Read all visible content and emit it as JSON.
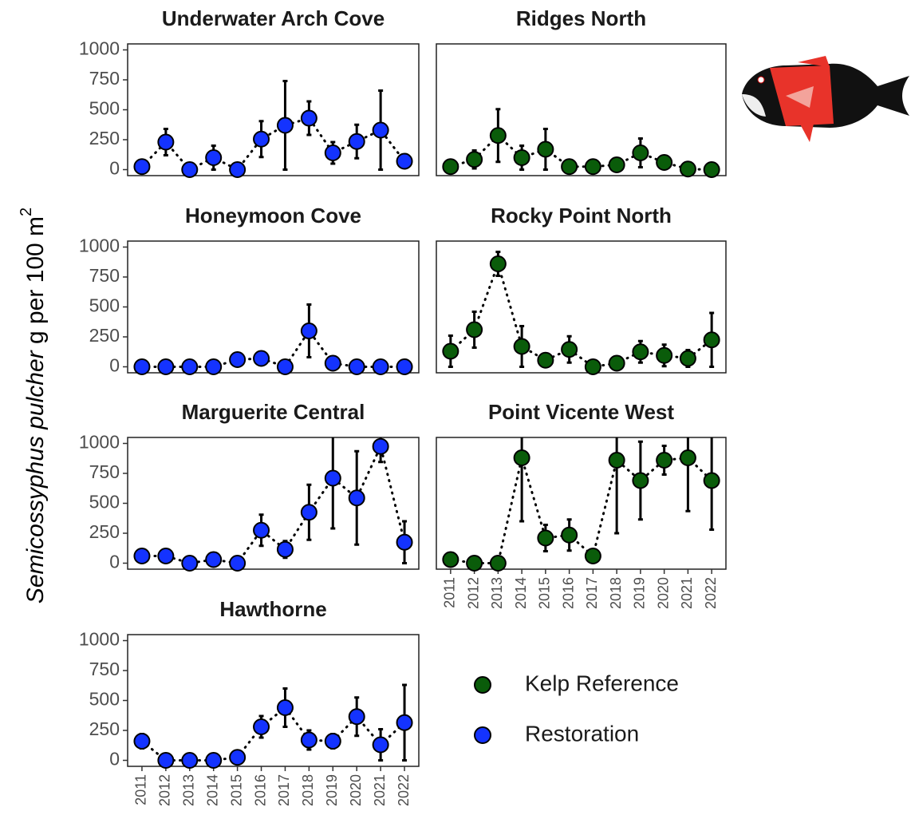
{
  "chart_data": [
    {
      "type": "scatter",
      "title": "Underwater Arch Cove",
      "x": [
        2011,
        2012,
        2013,
        2014,
        2015,
        2016,
        2017,
        2018,
        2019,
        2020,
        2021,
        2022
      ],
      "series": [
        {
          "name": "Restoration",
          "color": "#1433ff",
          "values": [
            25,
            230,
            0,
            100,
            0,
            255,
            370,
            430,
            140,
            235,
            330,
            70
          ],
          "errors": [
            0,
            110,
            0,
            100,
            0,
            150,
            370,
            140,
            90,
            140,
            330,
            0
          ]
        }
      ],
      "xlim": [
        2010.4,
        2022.6
      ],
      "ylim": [
        -50,
        1050
      ],
      "yticks": [
        0,
        250,
        500,
        750,
        1000
      ]
    },
    {
      "type": "scatter",
      "title": "Ridges North",
      "x": [
        2011,
        2012,
        2013,
        2014,
        2015,
        2016,
        2017,
        2018,
        2019,
        2020,
        2021,
        2022
      ],
      "series": [
        {
          "name": "Kelp Reference",
          "color": "#0a5c0a",
          "values": [
            25,
            85,
            285,
            100,
            170,
            25,
            25,
            40,
            140,
            60,
            5,
            0
          ],
          "errors": [
            0,
            75,
            220,
            100,
            170,
            0,
            0,
            0,
            120,
            0,
            0,
            0
          ]
        }
      ],
      "xlim": [
        2010.4,
        2022.6
      ],
      "ylim": [
        -50,
        1050
      ],
      "yticks": [
        0,
        250,
        500,
        750,
        1000
      ]
    },
    {
      "type": "scatter",
      "title": "Honeymoon Cove",
      "x": [
        2011,
        2012,
        2013,
        2014,
        2015,
        2016,
        2017,
        2018,
        2019,
        2020,
        2021,
        2022
      ],
      "series": [
        {
          "name": "Restoration",
          "color": "#1433ff",
          "values": [
            0,
            0,
            0,
            0,
            60,
            70,
            0,
            300,
            30,
            0,
            0,
            0
          ],
          "errors": [
            0,
            0,
            0,
            0,
            0,
            0,
            0,
            220,
            0,
            0,
            0,
            0
          ]
        }
      ],
      "xlim": [
        2010.4,
        2022.6
      ],
      "ylim": [
        -50,
        1050
      ],
      "yticks": [
        0,
        250,
        500,
        750,
        1000
      ]
    },
    {
      "type": "scatter",
      "title": "Rocky Point North",
      "x": [
        2011,
        2012,
        2013,
        2014,
        2015,
        2016,
        2017,
        2018,
        2019,
        2020,
        2021,
        2022
      ],
      "series": [
        {
          "name": "Kelp Reference",
          "color": "#0a5c0a",
          "values": [
            130,
            310,
            860,
            170,
            55,
            145,
            0,
            30,
            125,
            95,
            70,
            225
          ],
          "errors": [
            130,
            150,
            100,
            170,
            0,
            110,
            0,
            0,
            90,
            90,
            70,
            225
          ]
        }
      ],
      "xlim": [
        2010.4,
        2022.6
      ],
      "ylim": [
        -50,
        1050
      ],
      "yticks": [
        0,
        250,
        500,
        750,
        1000
      ]
    },
    {
      "type": "scatter",
      "title": "Marguerite Central",
      "x": [
        2011,
        2012,
        2013,
        2014,
        2015,
        2016,
        2017,
        2018,
        2019,
        2020,
        2021,
        2022
      ],
      "series": [
        {
          "name": "Restoration",
          "color": "#1433ff",
          "values": [
            60,
            60,
            0,
            30,
            0,
            275,
            115,
            425,
            710,
            545,
            975,
            175
          ],
          "errors": [
            0,
            0,
            0,
            0,
            0,
            130,
            70,
            230,
            420,
            390,
            130,
            175
          ]
        }
      ],
      "xlim": [
        2010.4,
        2022.6
      ],
      "ylim": [
        -50,
        1050
      ],
      "yticks": [
        0,
        250,
        500,
        750,
        1000
      ]
    },
    {
      "type": "scatter",
      "title": "Point Vicente West",
      "x": [
        2011,
        2012,
        2013,
        2014,
        2015,
        2016,
        2017,
        2018,
        2019,
        2020,
        2021,
        2022
      ],
      "series": [
        {
          "name": "Kelp Reference",
          "color": "#0a5c0a",
          "values": [
            30,
            0,
            0,
            880,
            210,
            235,
            60,
            860,
            690,
            860,
            880,
            690
          ],
          "errors": [
            0,
            0,
            0,
            530,
            110,
            130,
            0,
            610,
            325,
            120,
            445,
            410
          ]
        }
      ],
      "xlim": [
        2010.4,
        2022.6
      ],
      "ylim": [
        -50,
        1050
      ],
      "yticks": [
        0,
        250,
        500,
        750,
        1000
      ]
    },
    {
      "type": "scatter",
      "title": "Hawthorne",
      "x": [
        2011,
        2012,
        2013,
        2014,
        2015,
        2016,
        2017,
        2018,
        2019,
        2020,
        2021,
        2022
      ],
      "series": [
        {
          "name": "Restoration",
          "color": "#1433ff",
          "values": [
            160,
            0,
            0,
            0,
            25,
            280,
            440,
            170,
            160,
            365,
            130,
            315
          ],
          "errors": [
            60,
            0,
            0,
            0,
            25,
            90,
            160,
            80,
            60,
            160,
            130,
            315
          ]
        }
      ],
      "xlim": [
        2010.4,
        2022.6
      ],
      "ylim": [
        -50,
        1050
      ],
      "yticks": [
        0,
        250,
        500,
        750,
        1000
      ]
    }
  ],
  "y_label": {
    "species": "Semicossyphus pulcher",
    "rest": " g per 100 m",
    "sup": "2"
  }
}
